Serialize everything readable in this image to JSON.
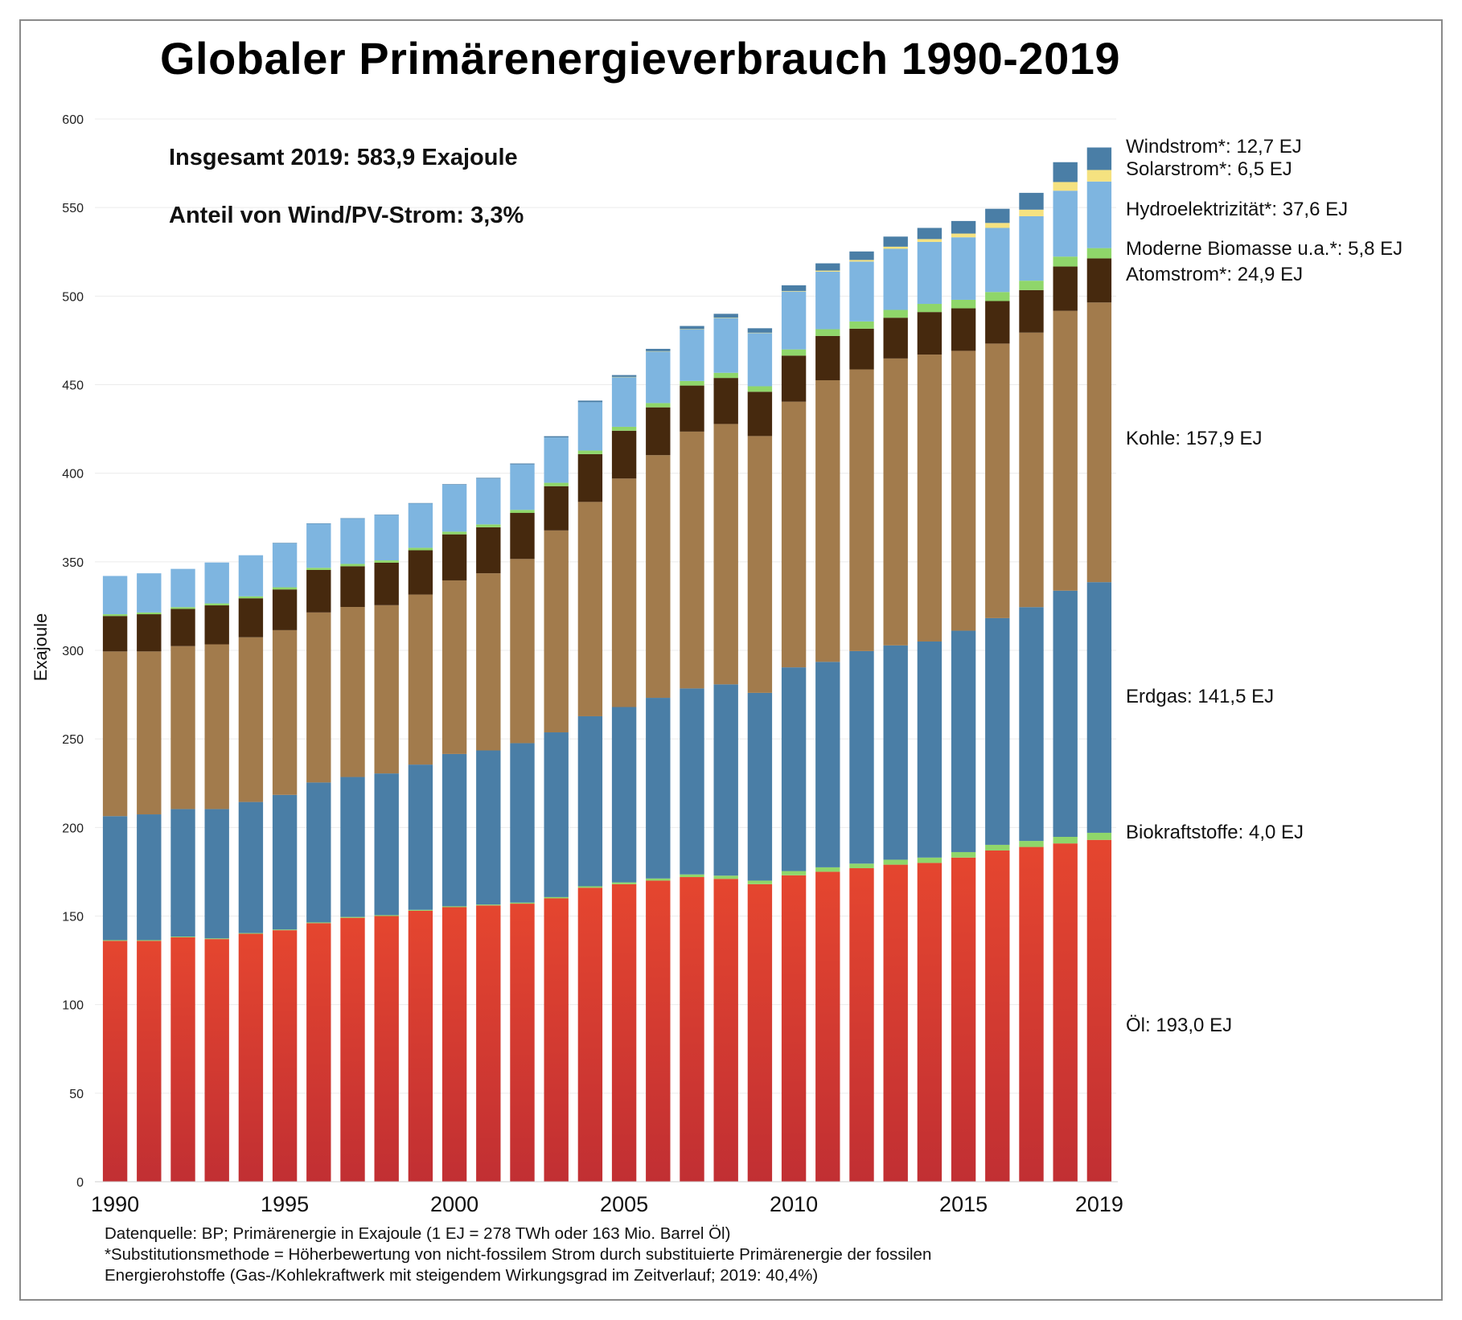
{
  "chart_data": {
    "type": "bar",
    "stacked": true,
    "title": "Globaler Primärenergieverbrauch 1990-2019",
    "ylabel": "Exajoule",
    "xlabel": "",
    "ylim": [
      0,
      600
    ],
    "yticks": [
      0,
      50,
      100,
      150,
      200,
      250,
      300,
      350,
      400,
      450,
      500,
      550,
      600
    ],
    "xtick_labels": [
      "1990",
      "1995",
      "2000",
      "2005",
      "2010",
      "2015",
      "2019"
    ],
    "grid": "horizontal",
    "categories": [
      1990,
      1991,
      1992,
      1993,
      1994,
      1995,
      1996,
      1997,
      1998,
      1999,
      2000,
      2001,
      2002,
      2003,
      2004,
      2005,
      2006,
      2007,
      2008,
      2009,
      2010,
      2011,
      2012,
      2013,
      2014,
      2015,
      2016,
      2017,
      2018,
      2019
    ],
    "series": [
      {
        "name": "Öl",
        "label": "Öl: 193,0 EJ",
        "color": "#e2432f",
        "values": [
          136,
          136,
          138,
          137,
          140,
          142,
          146,
          149,
          150,
          153,
          155,
          156,
          157,
          160,
          166,
          168,
          170,
          172,
          171,
          168,
          173,
          175,
          177,
          179,
          180,
          183,
          187,
          189,
          191,
          193
        ]
      },
      {
        "name": "Biokraftstoffe",
        "label": "Biokraftstoffe: 4,0 EJ",
        "color": "#8fd66a",
        "values": [
          0.4,
          0.4,
          0.4,
          0.4,
          0.4,
          0.4,
          0.4,
          0.5,
          0.5,
          0.5,
          0.5,
          0.5,
          0.6,
          0.7,
          0.8,
          1.0,
          1.2,
          1.5,
          1.8,
          2.0,
          2.4,
          2.5,
          2.6,
          2.8,
          3.0,
          3.1,
          3.2,
          3.4,
          3.7,
          4.0
        ]
      },
      {
        "name": "Erdgas",
        "label": "Erdgas: 141,5 EJ",
        "color": "#4a7ea6",
        "values": [
          70,
          71,
          72,
          73,
          74,
          76,
          79,
          79,
          80,
          82,
          86,
          87,
          90,
          93,
          96,
          99,
          102,
          105,
          108,
          106,
          115,
          116,
          120,
          121,
          122,
          125,
          128,
          132,
          139,
          141.5
        ]
      },
      {
        "name": "Kohle",
        "label": "Kohle: 157,9 EJ",
        "color": "#a27b4c",
        "values": [
          93,
          92,
          92,
          93,
          93,
          93,
          96,
          96,
          95,
          96,
          98,
          100,
          104,
          114,
          121,
          129,
          137,
          145,
          147,
          145,
          150,
          159,
          159,
          162,
          162,
          158,
          155,
          155,
          158,
          157.9
        ]
      },
      {
        "name": "Atomstrom*",
        "label": "Atomstrom*: 24,9 EJ",
        "color": "#46290e",
        "values": [
          20,
          21,
          21,
          22,
          22,
          23,
          24,
          23,
          24,
          25,
          26,
          26,
          26,
          25,
          27,
          27,
          27,
          26,
          26,
          25,
          26,
          25,
          23,
          23,
          24,
          24,
          24,
          24,
          25,
          24.9
        ]
      },
      {
        "name": "Moderne Biomasse u.a.*",
        "label": "Moderne Biomasse u.a.*: 5,8 EJ",
        "color": "#8fd66a",
        "values": [
          1.0,
          1.0,
          1.0,
          1.1,
          1.1,
          1.2,
          1.2,
          1.3,
          1.3,
          1.4,
          1.5,
          1.6,
          1.7,
          1.9,
          2.0,
          2.2,
          2.4,
          2.6,
          2.9,
          3.1,
          3.5,
          3.8,
          4.1,
          4.4,
          4.6,
          4.8,
          5.1,
          5.3,
          5.6,
          5.8
        ]
      },
      {
        "name": "Hydroelektrizität*",
        "label": "Hydroelektrizität*: 37,6 EJ",
        "color": "#7eb5e0",
        "values": [
          21.6,
          22.1,
          21.6,
          23.1,
          23.2,
          25,
          25,
          25.7,
          25.7,
          25.1,
          26.5,
          25.9,
          25.7,
          25.6,
          27.3,
          28.2,
          29.3,
          29.3,
          31.1,
          30.1,
          32.7,
          32.5,
          33.8,
          34.5,
          35.0,
          35.3,
          36.2,
          36.4,
          37.2,
          37.6
        ]
      },
      {
        "name": "Solarstrom*",
        "label": "Solarstrom*: 6,5 EJ",
        "color": "#f5e280",
        "values": [
          0,
          0,
          0,
          0,
          0,
          0,
          0,
          0,
          0,
          0,
          0,
          0,
          0,
          0,
          0,
          0.01,
          0.02,
          0.03,
          0.1,
          0.15,
          0.3,
          0.6,
          0.9,
          1.2,
          1.6,
          2.1,
          2.8,
          3.7,
          4.9,
          6.5
        ]
      },
      {
        "name": "Windstrom*",
        "label": "Windstrom*: 12,7 EJ",
        "color": "#4a7ea6",
        "values": [
          0,
          0,
          0,
          0,
          0,
          0.05,
          0.05,
          0.1,
          0.1,
          0.15,
          0.3,
          0.4,
          0.5,
          0.7,
          0.9,
          1.0,
          1.3,
          1.7,
          2.1,
          2.5,
          3.2,
          4.1,
          4.8,
          5.7,
          6.3,
          7.1,
          8.0,
          9.5,
          11.2,
          12.7
        ]
      }
    ]
  },
  "summary": {
    "total": "Insgesamt 2019: 583,9 Exajoule",
    "share": "Anteil von Wind/PV-Strom: 3,3%"
  },
  "footnotes": {
    "line1": "Datenquelle: BP; Primärenergie in Exajoule (1 EJ = 278 TWh oder 163 Mio. Barrel Öl)",
    "line2": "*Substitutionsmethode = Höherbewertung von nicht-fossilem Strom durch substituierte Primärenergie der fossilen",
    "line3": "Energierohstoffe (Gas-/Kohlekraftwerk mit steigendem Wirkungsgrad im Zeitverlauf; 2019: 40,4%)"
  }
}
